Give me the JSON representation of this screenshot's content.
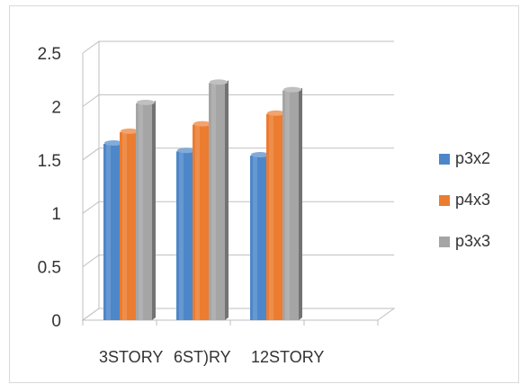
{
  "chart_data": {
    "type": "bar",
    "categories": [
      "3STORY",
      "6ST)RY",
      "12STORY"
    ],
    "series": [
      {
        "name": "p3x2",
        "values": [
          1.65,
          1.58,
          1.54
        ],
        "color": "#4e87c9"
      },
      {
        "name": "p4x3",
        "values": [
          1.76,
          1.83,
          1.93
        ],
        "color": "#ec7c30"
      },
      {
        "name": "p3x3",
        "values": [
          2.03,
          2.22,
          2.15
        ],
        "color": "#a5a5a5"
      }
    ],
    "y_ticks": [
      "0",
      "0.5",
      "1",
      "1.5",
      "2",
      "2.5"
    ],
    "ylim": [
      0,
      2.5
    ],
    "grid": true,
    "legend_position": "right",
    "style": "3d-clustered-column"
  }
}
